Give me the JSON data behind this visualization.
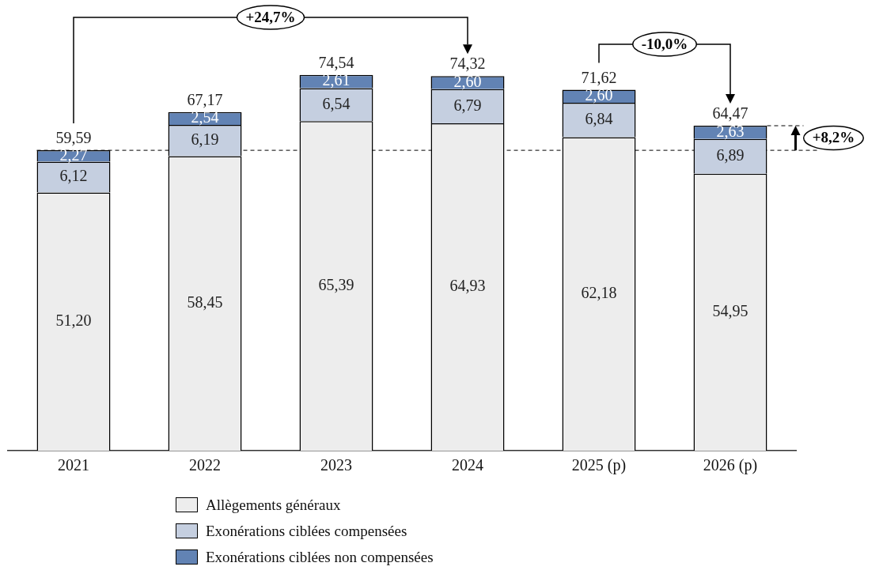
{
  "chart_data": {
    "type": "bar",
    "stacked": true,
    "categories": [
      "2021",
      "2022",
      "2023",
      "2024",
      "2025 (p)",
      "2026 (p)"
    ],
    "series": [
      {
        "name": "Allègements généraux",
        "color": "#ededed",
        "values": [
          51.2,
          58.45,
          65.39,
          64.93,
          62.18,
          54.95
        ],
        "value_labels": [
          "51,20",
          "58,45",
          "65,39",
          "64,93",
          "62,18",
          "54,95"
        ]
      },
      {
        "name": "Exonérations ciblées compensées",
        "color": "#c5cfe0",
        "values": [
          6.12,
          6.19,
          6.54,
          6.79,
          6.84,
          6.89
        ],
        "value_labels": [
          "6,12",
          "6,19",
          "6,54",
          "6,79",
          "6,84",
          "6,89"
        ]
      },
      {
        "name": "Exonérations ciblées non compensées",
        "color": "#6283b4",
        "values": [
          2.27,
          2.54,
          2.61,
          2.6,
          2.6,
          2.63
        ],
        "value_labels": [
          "2,27",
          "2,54",
          "2,61",
          "2,60",
          "2,60",
          "2,63"
        ]
      }
    ],
    "totals": [
      "59,59",
      "67,17",
      "74,54",
      "74,32",
      "71,62",
      "64,47"
    ],
    "ref_lines": [
      {
        "axis": "y",
        "value": 59.59,
        "line_style": "dashed",
        "color": "#000000"
      }
    ],
    "annotations": [
      "+24,7%",
      "-10,0%",
      "+8,2%"
    ],
    "legend": "bottom",
    "grid": false,
    "tick_labels": "x"
  }
}
